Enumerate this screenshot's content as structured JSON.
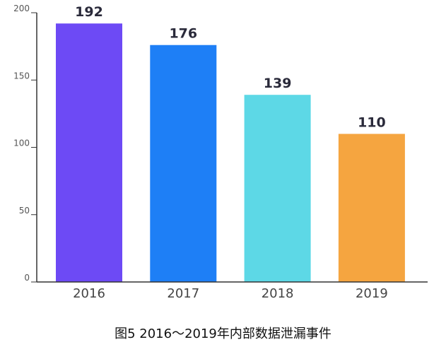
{
  "chart_data": {
    "type": "bar",
    "categories": [
      "2016",
      "2017",
      "2018",
      "2019"
    ],
    "values": [
      192,
      176,
      139,
      110
    ],
    "data_labels": [
      "192",
      "176",
      "139",
      "110"
    ],
    "colors": [
      "#6d4af5",
      "#1e7ff6",
      "#5dd8e6",
      "#f5a540"
    ],
    "title": "",
    "xlabel": "",
    "ylabel": "",
    "ylim": [
      0,
      200
    ],
    "yticks": [
      0,
      50,
      100,
      150,
      200
    ],
    "ytick_labels": [
      "0",
      "50",
      "100",
      "150",
      "200"
    ],
    "grid": false,
    "legend": "none"
  },
  "caption": "图5 2016～2019年内部数据泄漏事件"
}
